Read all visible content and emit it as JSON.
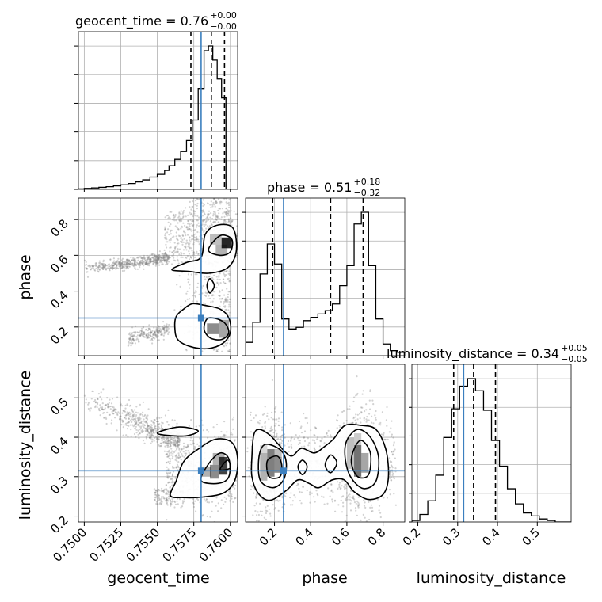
{
  "colors": {
    "truth": "#3b7fbf",
    "hist": "#000000",
    "grid": "#b0b0b0",
    "scatter": "#7f7f7f",
    "background": "#ffffff"
  },
  "chart_data": {
    "type": "corner",
    "parameters": [
      "geocent_time",
      "phase",
      "luminosity_distance"
    ],
    "axis_labels": {
      "geocent_time": "geocent_time",
      "phase": "phase",
      "luminosity_distance": "luminosity_distance"
    },
    "truth": {
      "geocent_time": 0.758,
      "phase": 0.25,
      "luminosity_distance": 0.315
    },
    "titles": {
      "geocent_time": {
        "text": "geocent_time = 0.76",
        "sup": "+0.00",
        "sub": "−0.00"
      },
      "phase": {
        "text": "phase = 0.51",
        "sup": "+0.18",
        "sub": "−0.32"
      },
      "luminosity_distance": {
        "text": "luminosity_distance = 0.34",
        "sup": "+0.05",
        "sub": "−0.05"
      }
    },
    "ranges": {
      "geocent_time": [
        0.7496,
        0.7605
      ],
      "phase": [
        0.04,
        0.92
      ],
      "luminosity_distance": [
        0.185,
        0.585
      ]
    },
    "ticks": {
      "geocent_time": {
        "values": [
          0.75,
          0.7525,
          0.755,
          0.7575,
          0.76
        ],
        "labels": [
          "0.7500",
          "0.7525",
          "0.7550",
          "0.7575",
          "0.7600"
        ]
      },
      "phase": {
        "values": [
          0.2,
          0.4,
          0.6,
          0.8
        ],
        "labels": [
          "0.2",
          "0.4",
          "0.6",
          "0.8"
        ]
      },
      "luminosity_distance": {
        "values": [
          0.2,
          0.3,
          0.4,
          0.5
        ],
        "labels": [
          "0.2",
          "0.3",
          "0.4",
          "0.5"
        ]
      }
    },
    "quantiles": {
      "geocent_time": [
        0.7573,
        0.7587,
        0.7596
      ],
      "phase": [
        0.19,
        0.51,
        0.69
      ],
      "luminosity_distance": [
        0.29,
        0.34,
        0.395
      ]
    },
    "histograms": {
      "geocent_time": {
        "edges": [
          0.7496,
          0.75,
          0.7505,
          0.751,
          0.7515,
          0.752,
          0.7525,
          0.753,
          0.7535,
          0.754,
          0.7545,
          0.755,
          0.7555,
          0.7558,
          0.7562,
          0.7566,
          0.757,
          0.7574,
          0.7578,
          0.7582,
          0.7585,
          0.7588,
          0.7591,
          0.7594,
          0.7597,
          0.76,
          0.7605
        ],
        "counts": [
          0.3,
          0.6,
          0.9,
          1.3,
          1.7,
          2.2,
          2.9,
          3.7,
          4.7,
          6.0,
          7.8,
          9.5,
          12,
          15,
          19,
          24,
          31,
          44,
          64,
          88,
          91,
          82,
          70,
          58,
          0,
          0
        ]
      },
      "phase": {
        "edges": [
          0.04,
          0.08,
          0.12,
          0.16,
          0.2,
          0.24,
          0.28,
          0.32,
          0.36,
          0.4,
          0.44,
          0.48,
          0.52,
          0.56,
          0.6,
          0.64,
          0.68,
          0.72,
          0.76,
          0.8,
          0.84,
          0.88,
          0.92
        ],
        "counts": [
          8,
          20,
          49,
          67,
          55,
          22,
          16,
          17,
          21,
          23,
          25,
          27,
          31,
          42,
          54,
          79,
          86,
          54,
          22,
          7,
          3,
          2
        ]
      },
      "luminosity_distance": {
        "edges": [
          0.185,
          0.205,
          0.225,
          0.245,
          0.265,
          0.285,
          0.305,
          0.325,
          0.345,
          0.365,
          0.385,
          0.405,
          0.425,
          0.445,
          0.465,
          0.485,
          0.505,
          0.525,
          0.545,
          0.565,
          0.585
        ],
        "counts": [
          1,
          5,
          14,
          31,
          56,
          75,
          90,
          95,
          87,
          74,
          54,
          37,
          22,
          12,
          6,
          4,
          2,
          1,
          0,
          0
        ]
      }
    },
    "contours": {
      "phase_vs_geocent_time": [
        [
          [
            0.7568,
            0.3
          ],
          [
            0.7574,
            0.33
          ],
          [
            0.7583,
            0.32
          ],
          [
            0.7593,
            0.3
          ],
          [
            0.7599,
            0.25
          ],
          [
            0.76,
            0.17
          ],
          [
            0.7595,
            0.11
          ],
          [
            0.7585,
            0.08
          ],
          [
            0.7573,
            0.09
          ],
          [
            0.7564,
            0.13
          ],
          [
            0.7562,
            0.2
          ],
          [
            0.7563,
            0.26
          ]
        ],
        [
          [
            0.7585,
            0.25
          ],
          [
            0.7595,
            0.23
          ],
          [
            0.7599,
            0.17
          ],
          [
            0.7594,
            0.13
          ],
          [
            0.7586,
            0.14
          ],
          [
            0.7582,
            0.19
          ]
        ],
        [
          [
            0.756,
            0.52
          ],
          [
            0.757,
            0.56
          ],
          [
            0.758,
            0.59
          ],
          [
            0.7583,
            0.72
          ],
          [
            0.7592,
            0.77
          ],
          [
            0.7602,
            0.75
          ],
          [
            0.7604,
            0.62
          ],
          [
            0.7598,
            0.53
          ],
          [
            0.7585,
            0.5
          ],
          [
            0.7572,
            0.51
          ]
        ],
        [
          [
            0.7585,
            0.63
          ],
          [
            0.7593,
            0.71
          ],
          [
            0.7601,
            0.69
          ],
          [
            0.76,
            0.62
          ],
          [
            0.7593,
            0.6
          ]
        ],
        [
          [
            0.7584,
            0.43
          ],
          [
            0.7586,
            0.47
          ],
          [
            0.7589,
            0.43
          ],
          [
            0.7586,
            0.39
          ]
        ]
      ],
      "luminosity_distance_vs_geocent_time": [
        [
          [
            0.7559,
            0.252
          ],
          [
            0.7563,
            0.29
          ],
          [
            0.7568,
            0.338
          ],
          [
            0.7578,
            0.37
          ],
          [
            0.759,
            0.395
          ],
          [
            0.7601,
            0.387
          ],
          [
            0.7605,
            0.345
          ],
          [
            0.7603,
            0.29
          ],
          [
            0.7595,
            0.258
          ],
          [
            0.758,
            0.248
          ],
          [
            0.7568,
            0.247
          ]
        ],
        [
          [
            0.758,
            0.29
          ],
          [
            0.7585,
            0.332
          ],
          [
            0.7593,
            0.36
          ],
          [
            0.7599,
            0.345
          ],
          [
            0.7599,
            0.3
          ],
          [
            0.7592,
            0.283
          ]
        ],
        [
          [
            0.7593,
            0.318
          ],
          [
            0.7598,
            0.342
          ],
          [
            0.76,
            0.322
          ]
        ],
        [
          [
            0.755,
            0.41
          ],
          [
            0.7565,
            0.426
          ],
          [
            0.7578,
            0.416
          ],
          [
            0.7568,
            0.403
          ]
        ]
      ],
      "luminosity_distance_vs_phase": [
        [
          [
            0.075,
            0.35
          ],
          [
            0.085,
            0.405
          ],
          [
            0.115,
            0.42
          ],
          [
            0.175,
            0.405
          ],
          [
            0.225,
            0.38
          ],
          [
            0.265,
            0.36
          ],
          [
            0.3,
            0.353
          ],
          [
            0.35,
            0.372
          ],
          [
            0.42,
            0.36
          ],
          [
            0.475,
            0.376
          ],
          [
            0.525,
            0.395
          ],
          [
            0.59,
            0.43
          ],
          [
            0.68,
            0.43
          ],
          [
            0.76,
            0.42
          ],
          [
            0.815,
            0.37
          ],
          [
            0.83,
            0.3
          ],
          [
            0.8,
            0.255
          ],
          [
            0.72,
            0.242
          ],
          [
            0.64,
            0.262
          ],
          [
            0.585,
            0.292
          ],
          [
            0.52,
            0.292
          ],
          [
            0.445,
            0.272
          ],
          [
            0.395,
            0.282
          ],
          [
            0.33,
            0.292
          ],
          [
            0.265,
            0.265
          ],
          [
            0.175,
            0.24
          ],
          [
            0.11,
            0.258
          ],
          [
            0.075,
            0.3
          ]
        ],
        [
          [
            0.115,
            0.352
          ],
          [
            0.15,
            0.382
          ],
          [
            0.235,
            0.367
          ],
          [
            0.265,
            0.335
          ],
          [
            0.25,
            0.292
          ],
          [
            0.19,
            0.272
          ],
          [
            0.12,
            0.292
          ]
        ],
        [
          [
            0.16,
            0.34
          ],
          [
            0.215,
            0.352
          ],
          [
            0.24,
            0.33
          ],
          [
            0.23,
            0.3
          ],
          [
            0.17,
            0.3
          ]
        ],
        [
          [
            0.6,
            0.392
          ],
          [
            0.66,
            0.42
          ],
          [
            0.73,
            0.4
          ],
          [
            0.775,
            0.35
          ],
          [
            0.76,
            0.288
          ],
          [
            0.69,
            0.27
          ],
          [
            0.62,
            0.3
          ],
          [
            0.59,
            0.35
          ]
        ],
        [
          [
            0.64,
            0.37
          ],
          [
            0.68,
            0.392
          ],
          [
            0.73,
            0.36
          ],
          [
            0.72,
            0.305
          ],
          [
            0.66,
            0.3
          ],
          [
            0.625,
            0.335
          ]
        ],
        [
          [
            0.33,
            0.325
          ],
          [
            0.355,
            0.342
          ],
          [
            0.38,
            0.325
          ],
          [
            0.355,
            0.305
          ]
        ],
        [
          [
            0.48,
            0.33
          ],
          [
            0.51,
            0.355
          ],
          [
            0.545,
            0.335
          ],
          [
            0.51,
            0.31
          ]
        ]
      ]
    },
    "density_blocks": {
      "phase_vs_geocent_time": [
        [
          0.7584,
          0.7592,
          0.16,
          0.22,
          0.45
        ],
        [
          0.7592,
          0.7599,
          0.14,
          0.24,
          0.35
        ],
        [
          0.759,
          0.7598,
          0.6,
          0.66,
          0.3
        ],
        [
          0.7594,
          0.7601,
          0.64,
          0.7,
          0.85
        ],
        [
          0.7586,
          0.7594,
          0.66,
          0.72,
          0.25
        ]
      ],
      "luminosity_distance_vs_geocent_time": [
        [
          0.7586,
          0.7592,
          0.295,
          0.33,
          0.45
        ],
        [
          0.7592,
          0.7598,
          0.305,
          0.35,
          0.75
        ],
        [
          0.7588,
          0.7596,
          0.33,
          0.36,
          0.3
        ],
        [
          0.758,
          0.7587,
          0.3,
          0.325,
          0.3
        ]
      ],
      "luminosity_distance_vs_phase": [
        [
          0.12,
          0.16,
          0.36,
          0.38,
          0.15
        ],
        [
          0.12,
          0.16,
          0.29,
          0.36,
          0.3
        ],
        [
          0.16,
          0.2,
          0.3,
          0.37,
          0.5
        ],
        [
          0.2,
          0.24,
          0.31,
          0.35,
          0.45
        ],
        [
          0.2,
          0.24,
          0.35,
          0.37,
          0.25
        ],
        [
          0.6,
          0.64,
          0.32,
          0.4,
          0.25
        ],
        [
          0.64,
          0.68,
          0.3,
          0.38,
          0.55
        ],
        [
          0.68,
          0.72,
          0.31,
          0.36,
          0.35
        ],
        [
          0.64,
          0.68,
          0.38,
          0.41,
          0.2
        ]
      ]
    }
  }
}
